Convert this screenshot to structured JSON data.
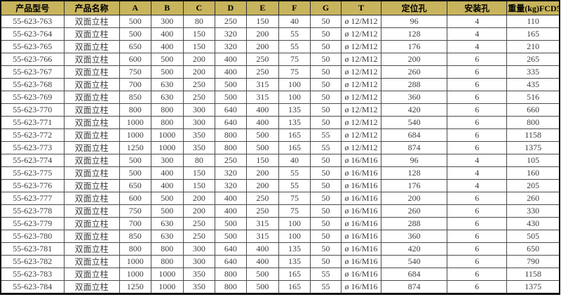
{
  "table": {
    "title": "product-spec-table",
    "header_bg": "#c8b45c",
    "grid_color": "#4c4c4c",
    "outer_border_color": "#111111",
    "columns": [
      "产品型号",
      "产品名称",
      "A",
      "B",
      "C",
      "D",
      "E",
      "F",
      "G",
      "T",
      "定位孔",
      "安装孔",
      "重量(kg)FCD50"
    ],
    "rows": [
      [
        "55-623-763",
        "双面立柱",
        "500",
        "300",
        "80",
        "250",
        "150",
        "40",
        "50",
        "ø 12/M12",
        "96",
        "4",
        "110"
      ],
      [
        "55-623-764",
        "双面立柱",
        "500",
        "400",
        "150",
        "320",
        "200",
        "55",
        "50",
        "ø 12/M12",
        "128",
        "4",
        "165"
      ],
      [
        "55-623-765",
        "双面立柱",
        "650",
        "400",
        "150",
        "320",
        "200",
        "55",
        "50",
        "ø 12/M12",
        "176",
        "4",
        "210"
      ],
      [
        "55-623-766",
        "双面立柱",
        "600",
        "500",
        "200",
        "400",
        "250",
        "75",
        "50",
        "ø 12/M12",
        "200",
        "6",
        "265"
      ],
      [
        "55-623-767",
        "双面立柱",
        "750",
        "500",
        "200",
        "400",
        "250",
        "75",
        "50",
        "ø 12/M12",
        "260",
        "6",
        "335"
      ],
      [
        "55-623-768",
        "双面立柱",
        "700",
        "630",
        "250",
        "500",
        "315",
        "100",
        "50",
        "ø 12/M12",
        "288",
        "6",
        "435"
      ],
      [
        "55-623-769",
        "双面立柱",
        "850",
        "630",
        "250",
        "500",
        "315",
        "100",
        "50",
        "ø 12/M12",
        "360",
        "6",
        "516"
      ],
      [
        "55-623-770",
        "双面立柱",
        "800",
        "800",
        "300",
        "640",
        "400",
        "135",
        "50",
        "ø 12/M12",
        "420",
        "6",
        "660"
      ],
      [
        "55-623-771",
        "双面立柱",
        "1000",
        "800",
        "300",
        "640",
        "400",
        "135",
        "50",
        "ø 12/M12",
        "540",
        "6",
        "800"
      ],
      [
        "55-623-772",
        "双面立柱",
        "1000",
        "1000",
        "350",
        "800",
        "500",
        "165",
        "55",
        "ø 12/M12",
        "684",
        "6",
        "1158"
      ],
      [
        "55-623-773",
        "双面立柱",
        "1250",
        "1000",
        "350",
        "800",
        "500",
        "165",
        "55",
        "ø 12/M12",
        "874",
        "6",
        "1375"
      ],
      [
        "55-623-774",
        "双面立柱",
        "500",
        "300",
        "80",
        "250",
        "150",
        "40",
        "50",
        "ø 16/M16",
        "96",
        "4",
        "105"
      ],
      [
        "55-623-775",
        "双面立柱",
        "500",
        "400",
        "150",
        "320",
        "200",
        "55",
        "50",
        "ø 16/M16",
        "128",
        "4",
        "160"
      ],
      [
        "55-623-776",
        "双面立柱",
        "650",
        "400",
        "150",
        "320",
        "200",
        "55",
        "50",
        "ø 16/M16",
        "176",
        "4",
        "205"
      ],
      [
        "55-623-777",
        "双面立柱",
        "600",
        "500",
        "200",
        "400",
        "250",
        "75",
        "50",
        "ø 16/M16",
        "200",
        "6",
        "260"
      ],
      [
        "55-623-778",
        "双面立柱",
        "750",
        "500",
        "200",
        "400",
        "250",
        "75",
        "50",
        "ø 16/M16",
        "260",
        "6",
        "330"
      ],
      [
        "55-623-779",
        "双面立柱",
        "700",
        "630",
        "250",
        "500",
        "315",
        "100",
        "50",
        "ø 16/M16",
        "288",
        "6",
        "430"
      ],
      [
        "55-623-780",
        "双面立柱",
        "850",
        "630",
        "250",
        "500",
        "315",
        "100",
        "50",
        "ø 16/M16",
        "360",
        "6",
        "505"
      ],
      [
        "55-623-781",
        "双面立柱",
        "800",
        "800",
        "300",
        "640",
        "400",
        "135",
        "50",
        "ø 16/M16",
        "420",
        "6",
        "650"
      ],
      [
        "55-623-782",
        "双面立柱",
        "1000",
        "800",
        "300",
        "640",
        "400",
        "135",
        "50",
        "ø 16/M16",
        "540",
        "6",
        "790"
      ],
      [
        "55-623-783",
        "双面立柱",
        "1000",
        "1000",
        "350",
        "800",
        "500",
        "165",
        "55",
        "ø 16/M16",
        "684",
        "6",
        "1158"
      ],
      [
        "55-623-784",
        "双面立柱",
        "1250",
        "1000",
        "350",
        "800",
        "500",
        "165",
        "55",
        "ø 16/M16",
        "874",
        "6",
        "1375"
      ]
    ]
  }
}
